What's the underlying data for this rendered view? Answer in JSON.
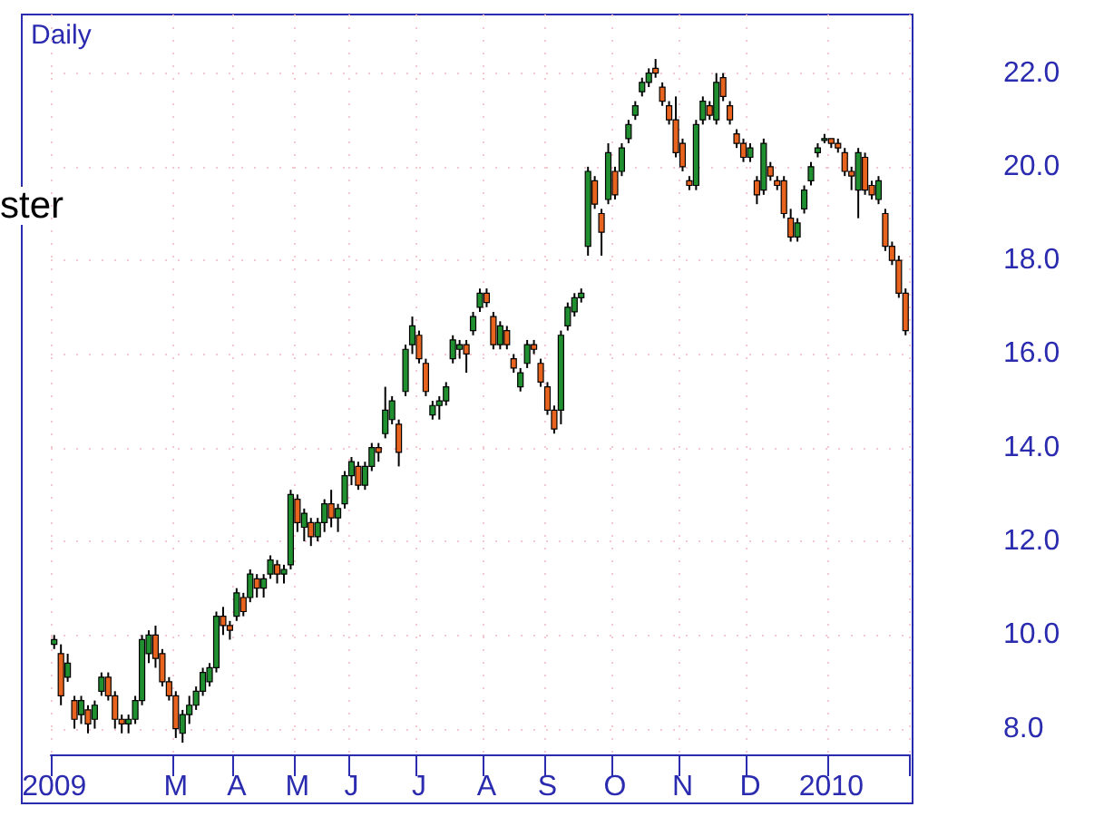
{
  "chart_data": {
    "type": "candlestick",
    "title": "Daily",
    "annotations": [
      "ster"
    ],
    "colors": [
      "#1f8f2f",
      "#e8641e",
      "#1f8f2f",
      "#e8641e",
      "#1f8f2f",
      "#e8641e",
      "#1f8f2f",
      "#1f8f2f",
      "#e8641e",
      "#e8641e",
      "#e8641e",
      "#1f8f2f",
      "#1f8f2f",
      "#1f8f2f",
      "#1f8f2f",
      "#e8641e",
      "#e8641e",
      "#e8641e",
      "#e8641e",
      "#1f8f2f",
      "#1f8f2f",
      "#1f8f2f",
      "#1f8f2f",
      "#1f8f2f",
      "#1f8f2f",
      "#e8641e",
      "#e8641e",
      "#1f8f2f",
      "#e8641e",
      "#1f8f2f",
      "#e8641e",
      "#1f8f2f",
      "#1f8f2f",
      "#e8641e",
      "#1f8f2f",
      "#1f8f2f",
      "#e8641e",
      "#1f8f2f",
      "#e8641e",
      "#1f8f2f",
      "#1f8f2f",
      "#e8641e",
      "#1f8f2f",
      "#1f8f2f",
      "#1f8f2f",
      "#e8641e",
      "#1f8f2f",
      "#1f8f2f",
      "#e8641e",
      "#1f8f2f",
      "#1f8f2f",
      "#e8641e",
      "#1f8f2f",
      "#1f8f2f",
      "#e8641e",
      "#e8641e",
      "#1f8f2f",
      "#1f8f2f",
      "#1f8f2f",
      "#1f8f2f",
      "#1f8f2f",
      "#e8641e",
      "#1f8f2f",
      "#1f8f2f",
      "#e8641e",
      "#e8641e",
      "#1f8f2f",
      "#e8641e",
      "#e8641e",
      "#1f8f2f",
      "#1f8f2f",
      "#e8641e",
      "#e8641e",
      "#e8641e",
      "#e8641e",
      "#1f8f2f",
      "#1f8f2f",
      "#1f8f2f",
      "#1f8f2f",
      "#1f8f2f",
      "#e8641e",
      "#e8641e",
      "#1f8f2f",
      "#e8641e",
      "#1f8f2f",
      "#1f8f2f",
      "#1f8f2f",
      "#1f8f2f",
      "#1f8f2f",
      "#e8641e",
      "#e8641e",
      "#e8641e",
      "#e8641e",
      "#e8641e",
      "#e8641e",
      "#1f8f2f",
      "#1f8f2f",
      "#e8641e",
      "#1f8f2f",
      "#e8641e",
      "#e8641e",
      "#e8641e",
      "#e8641e",
      "#1f8f2f",
      "#e8641e",
      "#1f8f2f",
      "#e8641e",
      "#e8641e",
      "#e8641e",
      "#e8641e",
      "#1f8f2f",
      "#1f8f2f",
      "#1f8f2f",
      "#1f8f2f",
      "#1f8f2f",
      "#e8641e",
      "#e8641e",
      "#e8641e",
      "#e8641e",
      "#1f8f2f",
      "#e8641e",
      "#e8641e",
      "#1f8f2f",
      "#e8641e",
      "#e8641e",
      "#e8641e",
      "#e8641e"
    ],
    "ylim": [
      7.45,
      23.25
    ],
    "yticks": [
      {
        "value": 8,
        "label": "8.0"
      },
      {
        "value": 10,
        "label": "10.0"
      },
      {
        "value": 12,
        "label": "12.0"
      },
      {
        "value": 14,
        "label": "14.0"
      },
      {
        "value": 16,
        "label": "16.0"
      },
      {
        "value": 18,
        "label": "18.0"
      },
      {
        "value": 20,
        "label": "20.0"
      },
      {
        "value": 22,
        "label": "22.0"
      }
    ],
    "grid": true,
    "categories": [
      "2009",
      null,
      null,
      null,
      null,
      null,
      null,
      null,
      null,
      null,
      null,
      null,
      null,
      null,
      null,
      null,
      null,
      null,
      "M",
      null,
      null,
      null,
      null,
      null,
      null,
      null,
      null,
      "A",
      null,
      null,
      null,
      null,
      null,
      null,
      null,
      null,
      "M",
      null,
      null,
      null,
      null,
      null,
      null,
      null,
      "J",
      null,
      null,
      null,
      null,
      null,
      null,
      null,
      null,
      null,
      "J",
      null,
      null,
      null,
      null,
      null,
      null,
      null,
      null,
      null,
      "A",
      null,
      null,
      null,
      null,
      null,
      null,
      null,
      null,
      "S",
      null,
      null,
      null,
      null,
      null,
      null,
      null,
      null,
      null,
      "O",
      null,
      null,
      null,
      null,
      null,
      null,
      null,
      null,
      null,
      "N",
      null,
      null,
      null,
      null,
      null,
      null,
      null,
      null,
      null,
      "D",
      null,
      null,
      null,
      null,
      null,
      null,
      null,
      null,
      null,
      null,
      null,
      "2010",
      null,
      null,
      null,
      null,
      null,
      null,
      null,
      null,
      null,
      null,
      null
    ],
    "ohlc": [
      [
        9.8,
        10.0,
        9.7,
        9.9
      ],
      [
        9.6,
        9.8,
        8.5,
        8.7
      ],
      [
        9.1,
        9.6,
        9.0,
        9.4
      ],
      [
        8.6,
        8.7,
        8.0,
        8.2
      ],
      [
        8.3,
        8.7,
        8.1,
        8.6
      ],
      [
        8.4,
        8.5,
        7.9,
        8.1
      ],
      [
        8.2,
        8.6,
        8.0,
        8.5
      ],
      [
        8.8,
        9.2,
        8.7,
        9.1
      ],
      [
        9.1,
        9.2,
        8.6,
        8.7
      ],
      [
        8.7,
        8.8,
        8.0,
        8.2
      ],
      [
        8.2,
        8.3,
        7.9,
        8.1
      ],
      [
        8.1,
        8.3,
        7.9,
        8.2
      ],
      [
        8.2,
        8.7,
        8.1,
        8.6
      ],
      [
        8.6,
        10.0,
        8.5,
        9.9
      ],
      [
        9.6,
        10.1,
        9.4,
        10.0
      ],
      [
        10.0,
        10.2,
        9.3,
        9.5
      ],
      [
        9.6,
        9.7,
        8.9,
        9.0
      ],
      [
        9.0,
        9.1,
        8.6,
        8.7
      ],
      [
        8.7,
        8.8,
        7.8,
        8.0
      ],
      [
        7.9,
        8.4,
        7.7,
        8.3
      ],
      [
        8.3,
        8.7,
        8.1,
        8.5
      ],
      [
        8.5,
        8.9,
        8.4,
        8.8
      ],
      [
        8.8,
        9.3,
        8.7,
        9.2
      ],
      [
        9.0,
        9.4,
        8.9,
        9.3
      ],
      [
        9.3,
        10.5,
        9.2,
        10.4
      ],
      [
        10.4,
        10.6,
        10.0,
        10.2
      ],
      [
        10.2,
        10.3,
        9.9,
        10.1
      ],
      [
        10.4,
        11.0,
        10.3,
        10.9
      ],
      [
        10.8,
        10.9,
        10.4,
        10.5
      ],
      [
        10.8,
        11.4,
        10.7,
        11.3
      ],
      [
        11.2,
        11.3,
        10.8,
        11.0
      ],
      [
        11.0,
        11.3,
        10.8,
        11.2
      ],
      [
        11.3,
        11.7,
        11.2,
        11.6
      ],
      [
        11.5,
        11.6,
        11.1,
        11.3
      ],
      [
        11.3,
        11.5,
        11.1,
        11.4
      ],
      [
        11.5,
        13.1,
        11.4,
        13.0
      ],
      [
        12.9,
        13.0,
        12.2,
        12.4
      ],
      [
        12.3,
        12.7,
        12.0,
        12.6
      ],
      [
        12.4,
        12.5,
        11.9,
        12.1
      ],
      [
        12.1,
        12.5,
        12.0,
        12.4
      ],
      [
        12.4,
        12.9,
        12.2,
        12.8
      ],
      [
        12.8,
        13.1,
        12.3,
        12.5
      ],
      [
        12.5,
        12.8,
        12.2,
        12.7
      ],
      [
        12.8,
        13.5,
        12.7,
        13.4
      ],
      [
        13.4,
        13.8,
        13.2,
        13.7
      ],
      [
        13.6,
        13.7,
        13.1,
        13.2
      ],
      [
        13.2,
        13.7,
        13.1,
        13.6
      ],
      [
        13.6,
        14.1,
        13.5,
        14.0
      ],
      [
        14.0,
        14.1,
        13.7,
        13.9
      ],
      [
        14.3,
        15.3,
        14.2,
        14.8
      ],
      [
        14.6,
        15.1,
        14.5,
        15.0
      ],
      [
        14.5,
        14.6,
        13.6,
        13.9
      ],
      [
        15.2,
        16.2,
        15.1,
        16.1
      ],
      [
        16.2,
        16.8,
        16.0,
        16.6
      ],
      [
        16.4,
        16.5,
        15.8,
        15.9
      ],
      [
        15.8,
        15.9,
        15.1,
        15.2
      ],
      [
        14.7,
        15.0,
        14.6,
        14.9
      ],
      [
        14.9,
        15.1,
        14.6,
        15.0
      ],
      [
        15.0,
        15.4,
        14.9,
        15.3
      ],
      [
        15.9,
        16.4,
        15.8,
        16.3
      ],
      [
        16.1,
        16.3,
        15.9,
        16.2
      ],
      [
        16.2,
        16.3,
        15.6,
        16.0
      ],
      [
        16.5,
        16.9,
        16.4,
        16.8
      ],
      [
        17.0,
        17.4,
        16.9,
        17.3
      ],
      [
        17.3,
        17.4,
        17.0,
        17.1
      ],
      [
        16.8,
        16.9,
        16.1,
        16.2
      ],
      [
        16.2,
        16.7,
        16.1,
        16.6
      ],
      [
        16.5,
        16.6,
        16.1,
        16.2
      ],
      [
        15.9,
        16.0,
        15.6,
        15.7
      ],
      [
        15.3,
        15.7,
        15.2,
        15.6
      ],
      [
        15.8,
        16.3,
        15.7,
        16.2
      ],
      [
        16.2,
        16.3,
        16.0,
        16.1
      ],
      [
        15.8,
        15.9,
        15.3,
        15.4
      ],
      [
        15.3,
        15.4,
        14.7,
        14.8
      ],
      [
        14.8,
        14.9,
        14.3,
        14.4
      ],
      [
        14.8,
        16.5,
        14.5,
        16.4
      ],
      [
        16.6,
        17.1,
        16.5,
        17.0
      ],
      [
        16.9,
        17.3,
        16.8,
        17.2
      ],
      [
        17.2,
        17.4,
        17.1,
        17.3
      ],
      [
        18.3,
        20.0,
        18.1,
        19.9
      ],
      [
        19.7,
        19.8,
        19.1,
        19.2
      ],
      [
        19.0,
        19.1,
        18.1,
        18.6
      ],
      [
        19.3,
        20.5,
        19.2,
        20.3
      ],
      [
        19.9,
        20.0,
        19.3,
        19.4
      ],
      [
        19.9,
        20.5,
        19.8,
        20.4
      ],
      [
        20.6,
        21.0,
        20.5,
        20.9
      ],
      [
        21.1,
        21.4,
        21.0,
        21.3
      ],
      [
        21.6,
        21.9,
        21.5,
        21.8
      ],
      [
        21.8,
        22.1,
        21.7,
        22.0
      ],
      [
        22.1,
        22.3,
        21.9,
        22.0
      ],
      [
        21.7,
        21.8,
        21.3,
        21.4
      ],
      [
        21.3,
        21.4,
        20.9,
        21.0
      ],
      [
        21.0,
        21.5,
        20.2,
        20.3
      ],
      [
        20.5,
        20.6,
        19.9,
        20.0
      ],
      [
        19.7,
        19.8,
        19.5,
        19.6
      ],
      [
        19.6,
        21.0,
        19.5,
        20.9
      ],
      [
        21.0,
        21.5,
        20.9,
        21.4
      ],
      [
        21.3,
        21.4,
        21.0,
        21.1
      ],
      [
        21.0,
        22.0,
        20.9,
        21.8
      ],
      [
        21.9,
        22.0,
        21.4,
        21.5
      ],
      [
        21.3,
        21.4,
        20.9,
        21.0
      ],
      [
        20.7,
        20.8,
        20.4,
        20.5
      ],
      [
        20.5,
        20.6,
        20.1,
        20.2
      ],
      [
        20.2,
        20.5,
        20.1,
        20.4
      ],
      [
        19.7,
        19.8,
        19.2,
        19.4
      ],
      [
        19.5,
        20.6,
        19.4,
        20.5
      ],
      [
        20.0,
        20.1,
        19.7,
        19.8
      ],
      [
        19.7,
        19.8,
        19.5,
        19.6
      ],
      [
        19.7,
        19.8,
        18.9,
        19.0
      ],
      [
        18.9,
        19.1,
        18.4,
        18.5
      ],
      [
        18.5,
        18.9,
        18.4,
        18.8
      ],
      [
        19.1,
        19.6,
        19.0,
        19.5
      ],
      [
        19.7,
        20.1,
        19.6,
        20.0
      ],
      [
        20.3,
        20.5,
        20.2,
        20.4
      ],
      [
        20.6,
        20.7,
        20.5,
        20.6
      ],
      [
        20.6,
        20.6,
        20.4,
        20.5
      ],
      [
        20.5,
        20.6,
        20.3,
        20.4
      ],
      [
        20.3,
        20.4,
        19.8,
        19.9
      ],
      [
        19.9,
        20.0,
        19.5,
        19.8
      ],
      [
        19.5,
        20.4,
        18.9,
        20.3
      ],
      [
        20.2,
        20.3,
        19.4,
        19.5
      ],
      [
        19.6,
        19.7,
        19.3,
        19.4
      ],
      [
        19.3,
        19.8,
        19.2,
        19.7
      ],
      [
        19.0,
        19.1,
        18.2,
        18.3
      ],
      [
        18.3,
        18.4,
        17.9,
        18.0
      ],
      [
        18.0,
        18.1,
        17.2,
        17.3
      ],
      [
        17.3,
        17.4,
        16.4,
        16.5
      ]
    ]
  }
}
